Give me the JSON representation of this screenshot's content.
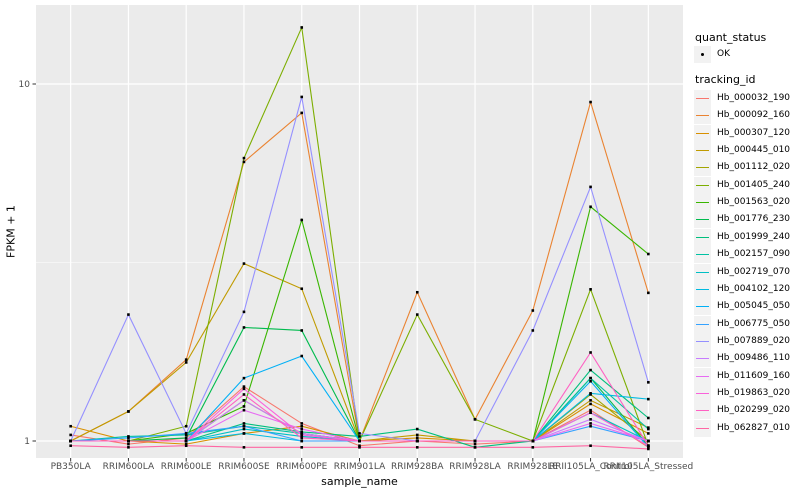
{
  "colors": {
    "panel_bg": "#EBEBEB",
    "grid": "#FFFFFF",
    "tick": "#333333",
    "axis_text": "#4D4D4D",
    "title_text": "#000000",
    "legend_key_bg": "#F2F2F2",
    "point": "#000000"
  },
  "legend": {
    "quant_status_title": "quant_status",
    "quant_status_items": [
      {
        "label": "OK",
        "marker": "black-point"
      }
    ],
    "tracking_title": "tracking_id"
  },
  "chart_data": {
    "type": "line",
    "title": "",
    "xlabel": "sample_name",
    "ylabel": "FPKM + 1",
    "y_scale": "log10",
    "y_ticks": [
      1,
      10
    ],
    "y_minor_gridlines": [
      3.1623
    ],
    "ylim_values": [
      0.9,
      16.5
    ],
    "grid": "on",
    "legend_position": "right",
    "point_marker_color": "#000000",
    "categories": [
      "PB350LA",
      "RRIM600LA",
      "RRIM600LE",
      "RRIM600SE",
      "RRIM600PE",
      "RRIM901LA",
      "RRIM928BA",
      "RRIM928LA",
      "RRIM928LE",
      "RRII105LA_Control",
      "RRII105LA_Stressed"
    ],
    "series": [
      {
        "name": "Hb_000032_190",
        "color": "#F8766D",
        "values": [
          1.04,
          0.98,
          1.02,
          1.42,
          1.12,
          0.97,
          1.0,
          0.98,
          1.0,
          1.22,
          0.96
        ]
      },
      {
        "name": "Hb_000092_160",
        "color": "#EA8331",
        "values": [
          1.0,
          1.21,
          1.69,
          6.05,
          8.3,
          1.0,
          2.61,
          1.15,
          2.32,
          8.9,
          2.6
        ]
      },
      {
        "name": "Hb_000307_120",
        "color": "#D89000",
        "values": [
          1.1,
          1.0,
          0.98,
          1.05,
          1.1,
          1.0,
          1.02,
          1.0,
          1.0,
          1.27,
          1.05
        ]
      },
      {
        "name": "Hb_000445_010",
        "color": "#C09B00",
        "values": [
          1.0,
          1.21,
          1.66,
          3.14,
          2.67,
          1.0,
          1.04,
          1.0,
          1.0,
          1.3,
          1.09
        ]
      },
      {
        "name": "Hb_001112_020",
        "color": "#A3A500",
        "values": [
          1.0,
          1.0,
          1.0,
          1.3,
          1.05,
          1.0,
          1.0,
          1.0,
          1.0,
          1.35,
          1.0
        ]
      },
      {
        "name": "Hb_001405_240",
        "color": "#7CAE00",
        "values": [
          1.0,
          1.0,
          1.1,
          6.2,
          14.4,
          1.0,
          2.26,
          1.15,
          1.0,
          2.66,
          0.97
        ]
      },
      {
        "name": "Hb_001563_020",
        "color": "#39B600",
        "values": [
          1.0,
          1.0,
          1.05,
          1.25,
          4.16,
          1.0,
          1.0,
          1.0,
          1.0,
          4.53,
          3.34
        ]
      },
      {
        "name": "Hb_001776_230",
        "color": "#00BB4E",
        "values": [
          1.0,
          1.0,
          1.02,
          2.08,
          2.04,
          1.0,
          1.0,
          1.0,
          1.0,
          1.5,
          0.97
        ]
      },
      {
        "name": "Hb_001999_240",
        "color": "#00BF7D",
        "values": [
          1.0,
          1.0,
          1.0,
          1.12,
          1.06,
          1.03,
          1.08,
          0.96,
          1.0,
          1.58,
          1.16
        ]
      },
      {
        "name": "Hb_002157_090",
        "color": "#00C1A3",
        "values": [
          1.0,
          1.03,
          1.04,
          1.1,
          1.05,
          1.0,
          1.0,
          1.0,
          1.0,
          1.5,
          1.08
        ]
      },
      {
        "name": "Hb_002719_070",
        "color": "#00BFC4",
        "values": [
          1.0,
          1.0,
          1.0,
          1.08,
          1.03,
          1.0,
          1.0,
          1.0,
          1.0,
          1.2,
          1.0
        ]
      },
      {
        "name": "Hb_004102_120",
        "color": "#00BAE0",
        "values": [
          1.0,
          1.0,
          1.0,
          1.05,
          1.0,
          1.0,
          1.0,
          1.0,
          1.0,
          1.36,
          1.31
        ]
      },
      {
        "name": "Hb_005045_050",
        "color": "#00B0F6",
        "values": [
          1.0,
          1.0,
          1.0,
          1.5,
          1.73,
          1.0,
          1.0,
          1.0,
          1.0,
          1.47,
          0.96
        ]
      },
      {
        "name": "Hb_006775_050",
        "color": "#35A2FF",
        "values": [
          1.0,
          1.02,
          1.05,
          1.1,
          1.0,
          1.0,
          1.0,
          1.0,
          1.0,
          1.1,
          1.0
        ]
      },
      {
        "name": "Hb_007889_020",
        "color": "#9590FF",
        "values": [
          1.0,
          2.26,
          1.05,
          2.3,
          9.2,
          1.05,
          1.0,
          1.0,
          2.04,
          5.15,
          1.46
        ]
      },
      {
        "name": "Hb_009486_110",
        "color": "#C77CFF",
        "values": [
          1.0,
          1.0,
          1.0,
          1.3,
          1.05,
          1.0,
          1.0,
          1.0,
          1.0,
          1.15,
          1.0
        ]
      },
      {
        "name": "Hb_011609_160",
        "color": "#E76BF3",
        "values": [
          1.0,
          1.0,
          1.0,
          1.22,
          1.08,
          1.0,
          1.0,
          1.0,
          1.0,
          1.12,
          1.0
        ]
      },
      {
        "name": "Hb_019863_020",
        "color": "#FA62DB",
        "values": [
          1.0,
          1.0,
          1.0,
          1.4,
          1.04,
          1.0,
          1.0,
          1.0,
          1.0,
          1.2,
          0.97
        ]
      },
      {
        "name": "Hb_020299_020",
        "color": "#FF61C3",
        "values": [
          1.0,
          1.0,
          1.0,
          1.35,
          1.02,
          1.0,
          1.0,
          1.0,
          1.0,
          1.77,
          0.97
        ]
      },
      {
        "name": "Hb_062827_010",
        "color": "#FF67A4",
        "values": [
          0.97,
          0.96,
          0.97,
          0.96,
          0.96,
          0.96,
          0.96,
          0.96,
          0.96,
          0.97,
          0.95
        ]
      }
    ]
  }
}
